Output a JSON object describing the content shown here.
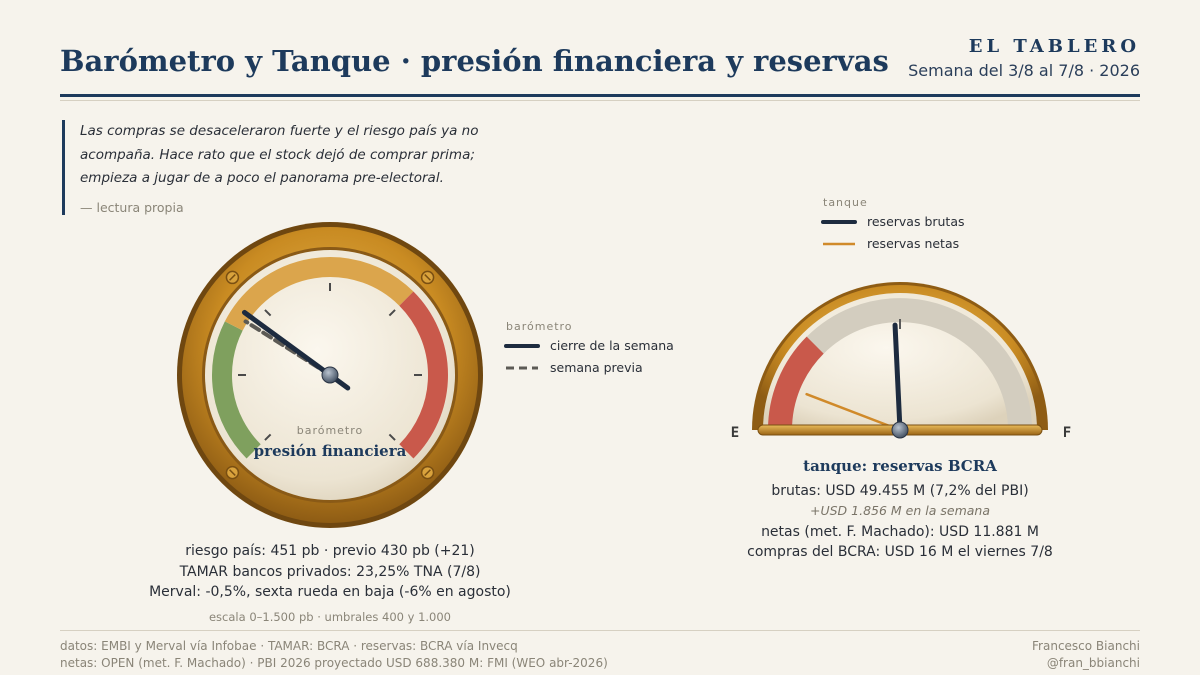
{
  "header": {
    "title": "Barómetro y Tanque · presión financiera y reservas",
    "brand": "EL TABLERO",
    "week": "Semana del 3/8 al 7/8 · 2026"
  },
  "quote": {
    "text_lines": [
      "Las compras se desaceleraron fuerte y el riesgo país ya no",
      "acompaña. Hace rato que el stock dejó de comprar prima;",
      "empieza a jugar de a poco el panorama pre-electoral."
    ],
    "source": "— lectura propia"
  },
  "chart_data": [
    {
      "type": "gauge",
      "kicker": "barómetro",
      "label": "presión financiera",
      "scale": [
        0,
        1500
      ],
      "thresholds": [
        400,
        1000
      ],
      "current": 451,
      "previous": 430,
      "legend": {
        "title": "barómetro",
        "items": [
          "cierre de la semana",
          "semana previa"
        ]
      },
      "stats": [
        "riesgo país: 451 pb · previo 430 pb (+21)",
        "TAMAR bancos privados: 23,25% TNA (7/8)",
        "Merval: -0,5%, sexta rueda en baja (-6% en agosto)"
      ],
      "scale_note": "escala 0–1.500 pb · umbrales 400 y 1.000",
      "colors": {
        "low": "#7fa05e",
        "mid": "#dba54c",
        "high": "#c9594b",
        "needle": "#1d2b3f"
      }
    },
    {
      "type": "tank",
      "label_empty": "E",
      "label_full": "F",
      "title": "tanque: reservas BCRA",
      "gross_musd": 49455,
      "net_musd": 11881,
      "gdp_musd": 688380,
      "legend": {
        "title": "tanque",
        "items": [
          "reservas brutas",
          "reservas netas"
        ]
      },
      "stats": {
        "brutas": "brutas: USD 49.455 M (7,2% del PBI)",
        "weekly": "+USD 1.856 M en la semana",
        "netas": "netas (met. F. Machado): USD 11.881 M",
        "compras": "compras del BCRA: USD 16 M el viernes 7/8"
      },
      "colors": {
        "red_zone": "#c9594b",
        "track": "#d3cdbf",
        "gross": "#1d2b3f",
        "net": "#d08a2a"
      }
    }
  ],
  "footer": {
    "left": [
      "datos: EMBI y Merval vía Infobae · TAMAR: BCRA · reservas: BCRA vía Invecq",
      "netas: OPEN (met. F. Machado) · PBI 2026 proyectado USD 688.380 M: FMI (WEO abr-2026)"
    ],
    "right": [
      "Francesco Bianchi",
      "@fran_bbianchi"
    ]
  }
}
